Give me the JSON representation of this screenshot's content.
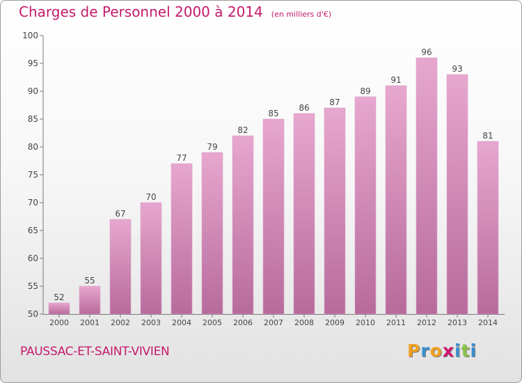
{
  "title": "Charges de Personnel 2000 à 2014",
  "subtitle": "(en milliers d'€)",
  "commune": "PAUSSAC-ET-SAINT-VIVIEN",
  "logo": {
    "letters": [
      "P",
      "r",
      "o",
      "x",
      "i",
      "t",
      "i"
    ],
    "colors": [
      "#f0a020",
      "#3a8fd0",
      "#f0a020",
      "#d01870",
      "#3a8fd0",
      "#8bc34a",
      "#3a8fd0"
    ]
  },
  "colors": {
    "bar_top": "#e7a7cf",
    "bar_bottom": "#b76b9c",
    "accent": "#c41a6b"
  },
  "chart_data": {
    "type": "bar",
    "categories": [
      "2000",
      "2001",
      "2002",
      "2003",
      "2004",
      "2005",
      "2006",
      "2007",
      "2008",
      "2009",
      "2010",
      "2011",
      "2012",
      "2013",
      "2014"
    ],
    "values": [
      52,
      55,
      67,
      70,
      77,
      79,
      82,
      85,
      86,
      87,
      89,
      91,
      96,
      93,
      81
    ],
    "ylim": [
      50,
      100
    ],
    "yticks": [
      50,
      55,
      60,
      65,
      70,
      75,
      80,
      85,
      90,
      95,
      100
    ],
    "grid": false,
    "data_labels": true
  }
}
